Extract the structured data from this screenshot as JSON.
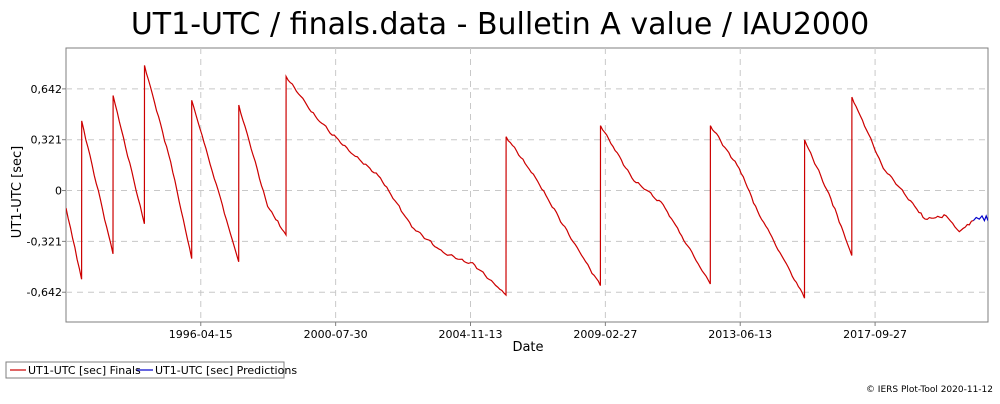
{
  "chart_data": {
    "type": "line",
    "title": "UT1-UTC / finals.data - Bulletin A value / IAU2000",
    "xlabel": "Date",
    "ylabel": "UT1-UTC [sec]",
    "x_ticks": [
      "1996-04-15",
      "2000-07-30",
      "2004-11-13",
      "2009-02-27",
      "2013-06-13",
      "2017-09-27"
    ],
    "y_ticks": [
      "0,642",
      "0,321",
      "0",
      "-0,321",
      "-0,642"
    ],
    "y_tick_values": [
      0.642,
      0.321,
      0,
      -0.321,
      -0.642
    ],
    "xlim": [
      "1992-01-01",
      "2021-05-01"
    ],
    "ylim": [
      -0.83,
      0.9
    ],
    "grid": true,
    "legend_position": "bottom-left",
    "series": [
      {
        "name": "UT1-UTC [sec] Finals",
        "color": "#cc0000",
        "points": [
          [
            "1992-01-01",
            -0.11
          ],
          [
            "1992-06-30",
            -0.56
          ],
          [
            "1992-07-01",
            0.44
          ],
          [
            "1993-06-30",
            -0.4
          ],
          [
            "1993-07-01",
            0.6
          ],
          [
            "1994-06-30",
            -0.21
          ],
          [
            "1994-07-01",
            0.79
          ],
          [
            "1995-05-01",
            0.18
          ],
          [
            "1995-12-31",
            -0.43
          ],
          [
            "1996-01-01",
            0.57
          ],
          [
            "1997-06-30",
            -0.45
          ],
          [
            "1997-07-01",
            0.54
          ],
          [
            "1998-06-01",
            -0.1
          ],
          [
            "1998-12-31",
            -0.28
          ],
          [
            "1999-01-01",
            0.72
          ],
          [
            "2000-01-01",
            0.45
          ],
          [
            "2001-01-01",
            0.25
          ],
          [
            "2002-01-01",
            0.08
          ],
          [
            "2003-01-01",
            -0.23
          ],
          [
            "2004-01-01",
            -0.39
          ],
          [
            "2005-01-01",
            -0.47
          ],
          [
            "2005-12-31",
            -0.66
          ],
          [
            "2006-01-01",
            0.34
          ],
          [
            "2007-01-01",
            0.06
          ],
          [
            "2008-01-01",
            -0.28
          ],
          [
            "2008-12-31",
            -0.6
          ],
          [
            "2009-01-01",
            0.41
          ],
          [
            "2010-01-01",
            0.08
          ],
          [
            "2011-01-01",
            -0.09
          ],
          [
            "2012-06-30",
            -0.59
          ],
          [
            "2012-07-01",
            0.41
          ],
          [
            "2013-06-01",
            0.14
          ],
          [
            "2014-01-01",
            -0.13
          ],
          [
            "2015-06-30",
            -0.68
          ],
          [
            "2015-07-01",
            0.32
          ],
          [
            "2016-05-01",
            -0.05
          ],
          [
            "2016-12-31",
            -0.41
          ],
          [
            "2017-01-01",
            0.59
          ],
          [
            "2018-01-01",
            0.14
          ],
          [
            "2019-01-01",
            -0.1
          ],
          [
            "2019-05-01",
            -0.18
          ],
          [
            "2020-01-01",
            -0.16
          ],
          [
            "2020-06-01",
            -0.26
          ],
          [
            "2020-11-12",
            -0.19
          ]
        ]
      },
      {
        "name": "UT1-UTC [sec] Predictions",
        "color": "#0000cc",
        "points": [
          [
            "2020-11-12",
            -0.19
          ],
          [
            "2020-12-15",
            -0.17
          ],
          [
            "2021-01-20",
            -0.18
          ],
          [
            "2021-02-20",
            -0.16
          ],
          [
            "2021-03-20",
            -0.19
          ],
          [
            "2021-04-10",
            -0.16
          ],
          [
            "2021-05-01",
            -0.19
          ]
        ]
      }
    ]
  },
  "credit": "© IERS Plot-Tool 2020-11-12"
}
